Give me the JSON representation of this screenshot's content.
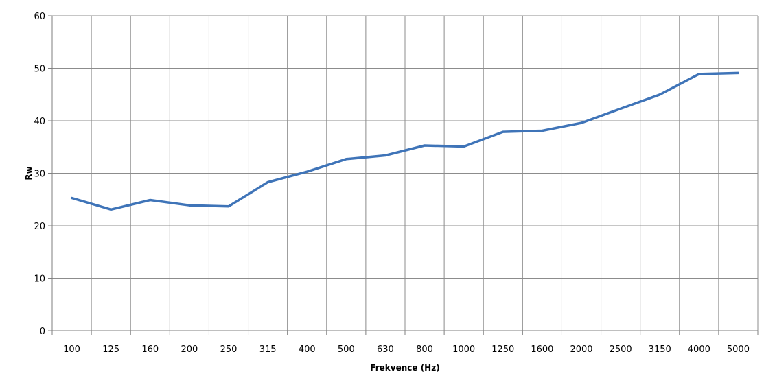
{
  "chart_data": {
    "type": "line",
    "title": "",
    "xlabel": "Frekvence (Hz)",
    "ylabel": "Rw",
    "categories": [
      "100",
      "125",
      "160",
      "200",
      "250",
      "315",
      "400",
      "500",
      "630",
      "800",
      "1000",
      "1250",
      "1600",
      "2000",
      "2500",
      "3150",
      "4000",
      "5000"
    ],
    "series": [
      {
        "values": [
          25.3,
          23.1,
          24.9,
          23.9,
          23.7,
          28.3,
          30.3,
          32.7,
          33.4,
          35.3,
          35.1,
          37.9,
          38.1,
          39.6,
          42.3,
          45.0,
          48.9,
          49.1
        ]
      }
    ],
    "ylim": [
      0,
      60
    ],
    "yticks": [
      0,
      10,
      20,
      30,
      40,
      50,
      60
    ],
    "grid": true,
    "legend": "none",
    "colors": {
      "series": "#3f74b8",
      "grid": "#8c8c8c"
    }
  }
}
